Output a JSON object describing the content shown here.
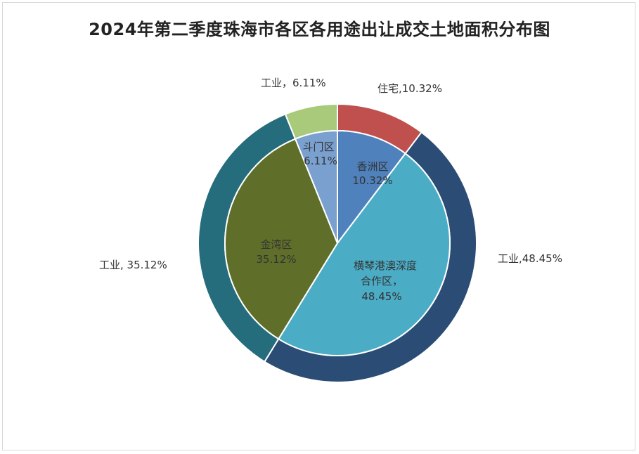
{
  "chart_data": {
    "type": "pie",
    "title": "2024年第二季度珠海市各区各用途出让成交土地面积分布图",
    "inner_ring": [
      {
        "label_line1": "香洲区",
        "label_line2": "10.32%",
        "label_line3": "",
        "value": 10.32,
        "color": "#4f81bd"
      },
      {
        "label_line1": "横琴港澳深度",
        "label_line2": "合作区，",
        "label_line3": "48.45%",
        "value": 48.45,
        "color": "#4bacc6"
      },
      {
        "label_line1": "金湾区",
        "label_line2": "35.12%",
        "label_line3": "",
        "value": 35.12,
        "color": "#5f6f2a"
      },
      {
        "label_line1": "斗门区",
        "label_line2": "6.11%",
        "label_line3": "",
        "value": 6.11,
        "color": "#7aa0cf"
      }
    ],
    "outer_ring": [
      {
        "label": "住宅,10.32%",
        "value": 10.32,
        "color": "#c0504d"
      },
      {
        "label": "工业,48.45%",
        "value": 48.45,
        "color": "#2b4c74"
      },
      {
        "label": "工业, 35.12%",
        "value": 35.12,
        "color": "#256c7c"
      },
      {
        "label": "工业，6.11%",
        "value": 6.11,
        "color": "#a9c97b"
      }
    ]
  }
}
